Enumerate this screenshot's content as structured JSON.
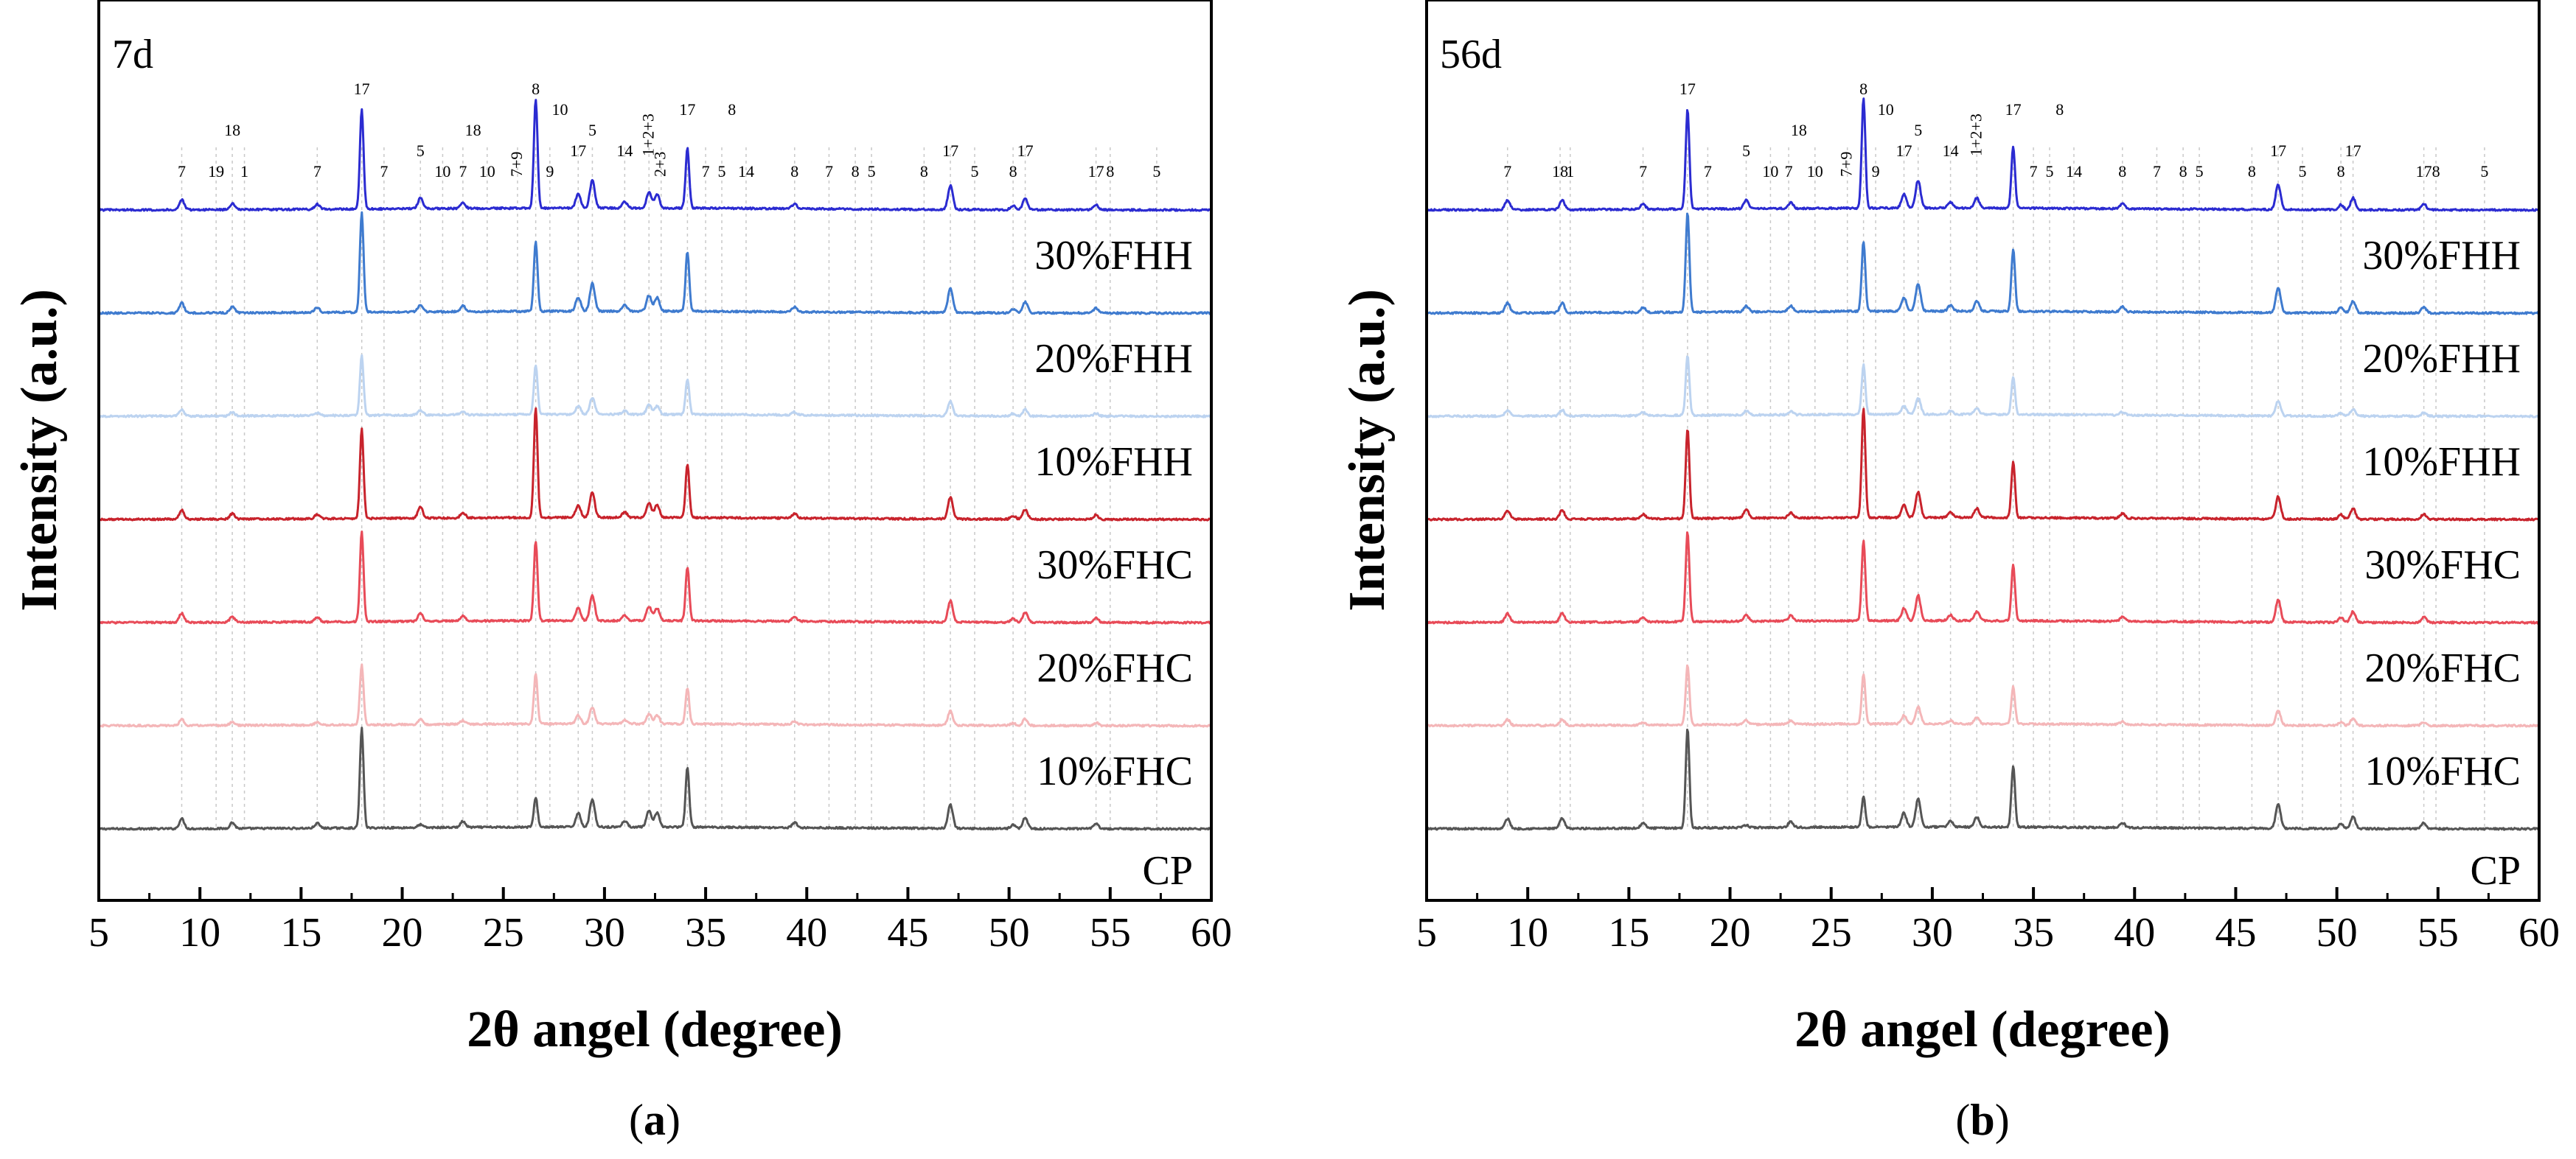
{
  "chart_data": [
    {
      "type": "line",
      "panel_id": "a",
      "caption_letter": "a",
      "age_label": "7d",
      "xlabel": "2θ angel (degree)",
      "ylabel": "Intensity (a.u.)",
      "xlim": [
        5,
        60
      ],
      "xticks": [
        5,
        10,
        15,
        20,
        25,
        30,
        35,
        40,
        45,
        50,
        55,
        60
      ],
      "series": [
        {
          "name": "CP",
          "color": "#555555",
          "offset": 0,
          "phase_scale": 1.0,
          "c3a_scale": 0.3
        },
        {
          "name": "10%FHC",
          "color": "#f4b6b8",
          "offset": 1,
          "phase_scale": 0.6,
          "c3a_scale": 0.5
        },
        {
          "name": "20%FHC",
          "color": "#e84b58",
          "offset": 2,
          "phase_scale": 0.9,
          "c3a_scale": 0.8
        },
        {
          "name": "30%FHC",
          "color": "#c8232c",
          "offset": 3,
          "phase_scale": 0.9,
          "c3a_scale": 1.1
        },
        {
          "name": "10%FHH",
          "color": "#bcd3f0",
          "offset": 4,
          "phase_scale": 0.6,
          "c3a_scale": 0.5
        },
        {
          "name": "20%FHH",
          "color": "#3f7bcf",
          "offset": 5,
          "phase_scale": 1.0,
          "c3a_scale": 0.7
        },
        {
          "name": "30%FHH",
          "color": "#2b2bd1",
          "offset": 6,
          "phase_scale": 1.0,
          "c3a_scale": 1.1
        }
      ],
      "peaks": [
        {
          "x": 9.1,
          "h": 0.1,
          "c3a": false
        },
        {
          "x": 11.6,
          "h": 0.06,
          "c3a": false
        },
        {
          "x": 15.8,
          "h": 0.05,
          "c3a": false
        },
        {
          "x": 18.0,
          "h": 1.0,
          "c3a": false
        },
        {
          "x": 20.9,
          "h": 0.1,
          "c3a": true
        },
        {
          "x": 23.0,
          "h": 0.06,
          "c3a": false
        },
        {
          "x": 26.6,
          "h": 1.0,
          "c3a": true
        },
        {
          "x": 28.7,
          "h": 0.14,
          "c3a": false
        },
        {
          "x": 29.4,
          "h": 0.28,
          "c3a": false
        },
        {
          "x": 31.0,
          "h": 0.06,
          "c3a": false
        },
        {
          "x": 32.2,
          "h": 0.16,
          "c3a": false
        },
        {
          "x": 32.6,
          "h": 0.14,
          "c3a": false
        },
        {
          "x": 34.1,
          "h": 0.6,
          "c3a": false
        },
        {
          "x": 39.4,
          "h": 0.05,
          "c3a": false
        },
        {
          "x": 47.1,
          "h": 0.24,
          "c3a": false
        },
        {
          "x": 50.2,
          "h": 0.04,
          "c3a": false
        },
        {
          "x": 50.8,
          "h": 0.11,
          "c3a": false
        },
        {
          "x": 54.3,
          "h": 0.05,
          "c3a": false
        }
      ],
      "peak_labels": [
        {
          "text": "18",
          "x": 11.6,
          "level": 3
        },
        {
          "text": "7",
          "x": 9.1,
          "level": 1
        },
        {
          "text": "19",
          "x": 10.8,
          "level": 1
        },
        {
          "text": "1",
          "x": 12.2,
          "level": 1
        },
        {
          "text": "7",
          "x": 15.8,
          "level": 1
        },
        {
          "text": "17",
          "x": 18.0,
          "level": 5
        },
        {
          "text": "7",
          "x": 19.1,
          "level": 1
        },
        {
          "text": "5",
          "x": 20.9,
          "level": 2
        },
        {
          "text": "10",
          "x": 22.0,
          "level": 1
        },
        {
          "text": "7",
          "x": 23.0,
          "level": 1
        },
        {
          "text": "18",
          "x": 23.5,
          "level": 3
        },
        {
          "text": "10",
          "x": 24.2,
          "level": 1
        },
        {
          "text": "7+9",
          "x": 25.7,
          "level": 1,
          "vertical": true
        },
        {
          "text": "8",
          "x": 26.6,
          "level": 5
        },
        {
          "text": "10",
          "x": 27.8,
          "level": 4
        },
        {
          "text": "9",
          "x": 27.3,
          "level": 1
        },
        {
          "text": "17",
          "x": 28.7,
          "level": 2
        },
        {
          "text": "5",
          "x": 29.4,
          "level": 3
        },
        {
          "text": "14",
          "x": 31.0,
          "level": 2
        },
        {
          "text": "1+2+3",
          "x": 32.2,
          "level": 2,
          "vertical": true
        },
        {
          "text": "2+3",
          "x": 32.8,
          "level": 1,
          "vertical": true
        },
        {
          "text": "17",
          "x": 34.1,
          "level": 4
        },
        {
          "text": "7",
          "x": 35.0,
          "level": 1
        },
        {
          "text": "5",
          "x": 35.8,
          "level": 1
        },
        {
          "text": "8",
          "x": 36.3,
          "level": 4
        },
        {
          "text": "14",
          "x": 37.0,
          "level": 1
        },
        {
          "text": "8",
          "x": 39.4,
          "level": 1
        },
        {
          "text": "7",
          "x": 41.1,
          "level": 1
        },
        {
          "text": "8",
          "x": 42.4,
          "level": 1
        },
        {
          "text": "5",
          "x": 43.2,
          "level": 1
        },
        {
          "text": "8",
          "x": 45.8,
          "level": 1
        },
        {
          "text": "17",
          "x": 47.1,
          "level": 2
        },
        {
          "text": "5",
          "x": 48.3,
          "level": 1
        },
        {
          "text": "8",
          "x": 50.2,
          "level": 1
        },
        {
          "text": "17",
          "x": 50.8,
          "level": 2
        },
        {
          "text": "17",
          "x": 54.3,
          "level": 1
        },
        {
          "text": "8",
          "x": 55.0,
          "level": 1
        },
        {
          "text": "5",
          "x": 57.3,
          "level": 1
        }
      ],
      "gridlines": [
        9.1,
        10.8,
        11.6,
        12.2,
        15.8,
        18.0,
        19.1,
        20.9,
        22.0,
        23.0,
        24.2,
        25.7,
        26.6,
        27.3,
        28.7,
        29.4,
        31.0,
        32.2,
        32.8,
        34.1,
        35.0,
        35.8,
        37.0,
        39.4,
        41.1,
        42.4,
        43.2,
        45.8,
        47.1,
        48.3,
        50.2,
        50.8,
        54.3,
        55.0,
        57.3
      ]
    },
    {
      "type": "line",
      "panel_id": "b",
      "caption_letter": "b",
      "age_label": "56d",
      "xlabel": "2θ angel (degree)",
      "ylabel": "Intensity (a.u.)",
      "xlim": [
        5,
        60
      ],
      "xticks": [
        5,
        10,
        15,
        20,
        25,
        30,
        35,
        40,
        45,
        50,
        55,
        60
      ],
      "series": [
        {
          "name": "CP",
          "color": "#555555",
          "offset": 0,
          "phase_scale": 1.0,
          "c3a_scale": 0.3
        },
        {
          "name": "10%FHC",
          "color": "#f4b6b8",
          "offset": 1,
          "phase_scale": 0.6,
          "c3a_scale": 0.5
        },
        {
          "name": "20%FHC",
          "color": "#e84b58",
          "offset": 2,
          "phase_scale": 0.9,
          "c3a_scale": 0.8
        },
        {
          "name": "30%FHC",
          "color": "#c8232c",
          "offset": 3,
          "phase_scale": 0.9,
          "c3a_scale": 1.1
        },
        {
          "name": "10%FHH",
          "color": "#bcd3f0",
          "offset": 4,
          "phase_scale": 0.6,
          "c3a_scale": 0.5
        },
        {
          "name": "20%FHH",
          "color": "#3f7bcf",
          "offset": 5,
          "phase_scale": 1.0,
          "c3a_scale": 0.7
        },
        {
          "name": "30%FHH",
          "color": "#2b2bd1",
          "offset": 6,
          "phase_scale": 1.0,
          "c3a_scale": 1.1
        }
      ],
      "peaks": [
        {
          "x": 9.0,
          "h": 0.1,
          "c3a": false
        },
        {
          "x": 11.7,
          "h": 0.1,
          "c3a": false
        },
        {
          "x": 15.7,
          "h": 0.05,
          "c3a": false
        },
        {
          "x": 17.9,
          "h": 1.0,
          "c3a": false
        },
        {
          "x": 20.8,
          "h": 0.08,
          "c3a": true
        },
        {
          "x": 23.0,
          "h": 0.06,
          "c3a": false
        },
        {
          "x": 26.6,
          "h": 1.0,
          "c3a": true
        },
        {
          "x": 28.6,
          "h": 0.14,
          "c3a": false
        },
        {
          "x": 29.3,
          "h": 0.28,
          "c3a": false
        },
        {
          "x": 30.9,
          "h": 0.06,
          "c3a": false
        },
        {
          "x": 32.2,
          "h": 0.1,
          "c3a": false
        },
        {
          "x": 34.0,
          "h": 0.62,
          "c3a": false
        },
        {
          "x": 39.4,
          "h": 0.05,
          "c3a": false
        },
        {
          "x": 47.1,
          "h": 0.25,
          "c3a": false
        },
        {
          "x": 50.2,
          "h": 0.05,
          "c3a": false
        },
        {
          "x": 50.8,
          "h": 0.12,
          "c3a": false
        },
        {
          "x": 54.3,
          "h": 0.06,
          "c3a": false
        }
      ],
      "peak_labels": [
        {
          "text": "7",
          "x": 9.0,
          "level": 1
        },
        {
          "text": "18",
          "x": 11.6,
          "level": 1
        },
        {
          "text": "1",
          "x": 12.1,
          "level": 1
        },
        {
          "text": "7",
          "x": 15.7,
          "level": 1
        },
        {
          "text": "17",
          "x": 17.9,
          "level": 5
        },
        {
          "text": "7",
          "x": 18.9,
          "level": 1
        },
        {
          "text": "5",
          "x": 20.8,
          "level": 2
        },
        {
          "text": "10",
          "x": 22.0,
          "level": 1
        },
        {
          "text": "7",
          "x": 22.9,
          "level": 1
        },
        {
          "text": "18",
          "x": 23.4,
          "level": 3
        },
        {
          "text": "10",
          "x": 24.2,
          "level": 1
        },
        {
          "text": "7+9",
          "x": 25.8,
          "level": 1,
          "vertical": true
        },
        {
          "text": "8",
          "x": 26.6,
          "level": 5
        },
        {
          "text": "10",
          "x": 27.7,
          "level": 4
        },
        {
          "text": "9",
          "x": 27.2,
          "level": 1
        },
        {
          "text": "17",
          "x": 28.6,
          "level": 2
        },
        {
          "text": "5",
          "x": 29.3,
          "level": 3
        },
        {
          "text": "14",
          "x": 30.9,
          "level": 2
        },
        {
          "text": "1+2+3",
          "x": 32.2,
          "level": 2,
          "vertical": true
        },
        {
          "text": "17",
          "x": 34.0,
          "level": 4
        },
        {
          "text": "7",
          "x": 35.0,
          "level": 1
        },
        {
          "text": "5",
          "x": 35.8,
          "level": 1
        },
        {
          "text": "8",
          "x": 36.3,
          "level": 4
        },
        {
          "text": "14",
          "x": 37.0,
          "level": 1
        },
        {
          "text": "8",
          "x": 39.4,
          "level": 1
        },
        {
          "text": "7",
          "x": 41.1,
          "level": 1
        },
        {
          "text": "8",
          "x": 42.4,
          "level": 1
        },
        {
          "text": "5",
          "x": 43.2,
          "level": 1
        },
        {
          "text": "8",
          "x": 45.8,
          "level": 1
        },
        {
          "text": "17",
          "x": 47.1,
          "level": 2
        },
        {
          "text": "5",
          "x": 48.3,
          "level": 1
        },
        {
          "text": "8",
          "x": 50.2,
          "level": 1
        },
        {
          "text": "17",
          "x": 50.8,
          "level": 2
        },
        {
          "text": "17",
          "x": 54.3,
          "level": 1
        },
        {
          "text": "8",
          "x": 54.9,
          "level": 1
        },
        {
          "text": "5",
          "x": 57.3,
          "level": 1
        }
      ],
      "gridlines": [
        9.0,
        11.6,
        12.1,
        15.7,
        17.9,
        18.9,
        20.8,
        22.0,
        22.9,
        24.2,
        25.8,
        26.6,
        27.2,
        28.6,
        29.3,
        30.9,
        32.2,
        34.0,
        35.0,
        35.8,
        37.0,
        39.4,
        41.1,
        42.4,
        43.2,
        45.8,
        47.1,
        48.3,
        50.2,
        50.8,
        54.3,
        54.9,
        57.3
      ]
    }
  ]
}
